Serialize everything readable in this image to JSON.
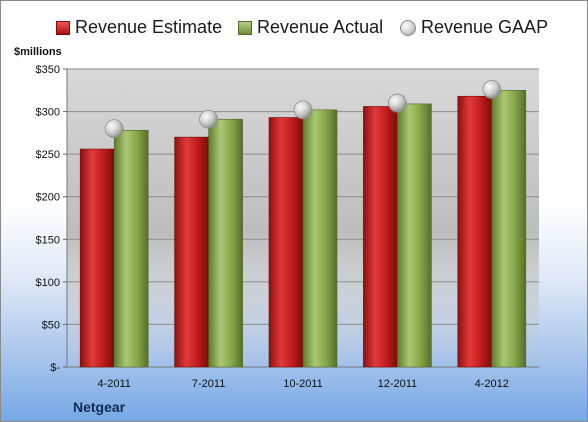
{
  "unit_label": "$millions",
  "company": "Netgear",
  "colors": {
    "estimate": "#c41e1e",
    "actual": "#8aaa4d",
    "gaap": "#c8c8c8"
  },
  "chart_data": {
    "type": "bar",
    "categories": [
      "4-2011",
      "7-2011",
      "10-2011",
      "12-2011",
      "4-2012"
    ],
    "series": [
      {
        "name": "Revenue Estimate",
        "kind": "bar",
        "values": [
          256,
          270,
          293,
          306,
          318
        ]
      },
      {
        "name": "Revenue Actual",
        "kind": "bar",
        "values": [
          278,
          291,
          302,
          309,
          325
        ]
      },
      {
        "name": "Revenue GAAP",
        "kind": "marker",
        "values": [
          280,
          291,
          302,
          310,
          326
        ]
      }
    ],
    "yticks": [
      "$-",
      "$50",
      "$100",
      "$150",
      "$200",
      "$250",
      "$300",
      "$350"
    ],
    "ylim": [
      0,
      350
    ],
    "grid": true,
    "legend_position": "top"
  }
}
